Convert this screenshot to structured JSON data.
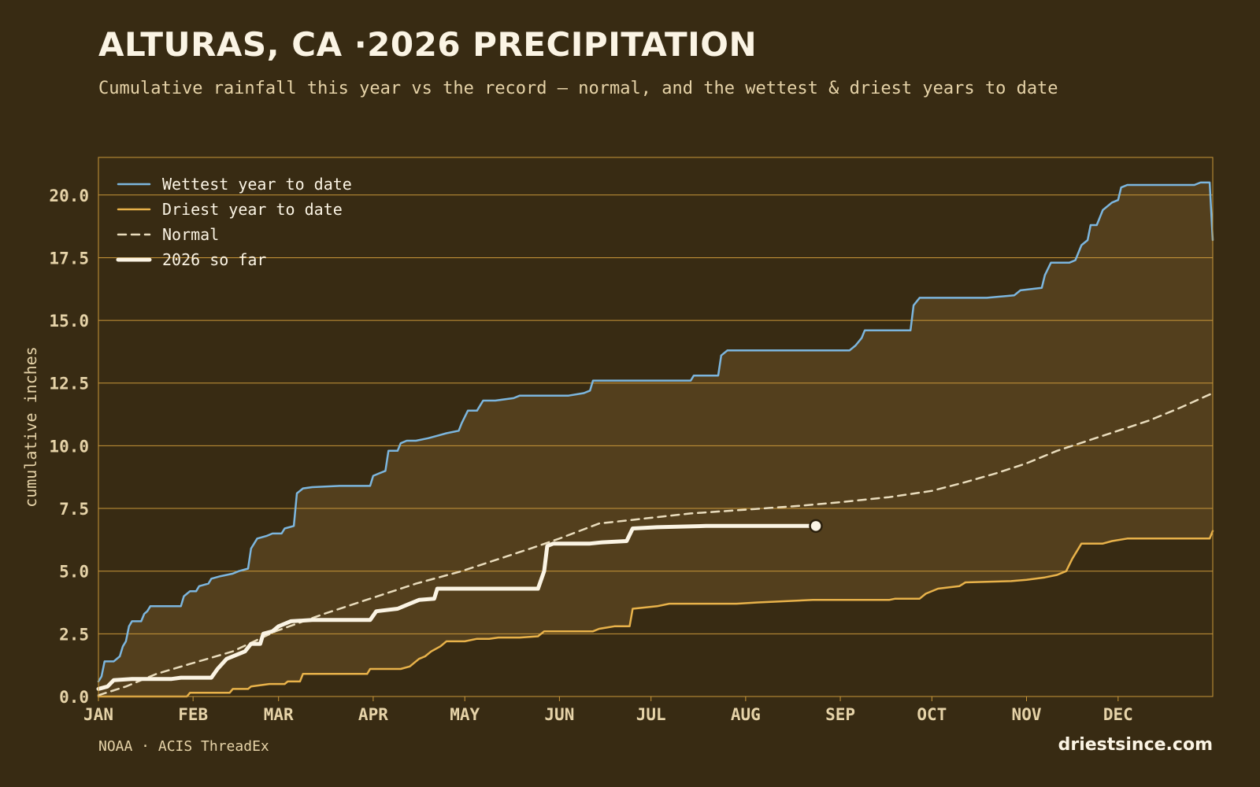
{
  "header": {
    "title": "ALTURAS, CA ·2026 PRECIPITATION",
    "subtitle": "Cumulative rainfall this year vs the record — normal, and the wettest & driest years to date"
  },
  "footer": {
    "source": "NOAA · ACIS ThreadEx",
    "brand": "driestsince.com"
  },
  "colors": {
    "background": "#382b13",
    "band": "#533f1d",
    "gridline": "#c9973a",
    "wettest": "#7cb6de",
    "driest": "#e8b24a",
    "normal": "#e9dcbc",
    "current": "#fbf4e4",
    "tick_text": "#e6d3a8"
  },
  "chart_data": {
    "type": "line",
    "ylabel": "cumulative inches",
    "xlabel": "",
    "ylim": [
      0,
      21.5
    ],
    "xlim_day": [
      1,
      366
    ],
    "yticks": [
      "0.0",
      "2.5",
      "5.0",
      "7.5",
      "10.0",
      "12.5",
      "15.0",
      "17.5",
      "20.0"
    ],
    "month_ticks": [
      {
        "label": "JAN",
        "day": 1
      },
      {
        "label": "FEB",
        "day": 32
      },
      {
        "label": "MAR",
        "day": 60
      },
      {
        "label": "APR",
        "day": 91
      },
      {
        "label": "MAY",
        "day": 121
      },
      {
        "label": "JUN",
        "day": 152
      },
      {
        "label": "JUL",
        "day": 182
      },
      {
        "label": "AUG",
        "day": 213
      },
      {
        "label": "SEP",
        "day": 244
      },
      {
        "label": "OCT",
        "day": 274
      },
      {
        "label": "NOV",
        "day": 305
      },
      {
        "label": "DEC",
        "day": 335
      }
    ],
    "legend_position": "top-left",
    "series": [
      {
        "name": "Wettest year to date",
        "style": "solid",
        "points": [
          [
            1,
            0.6
          ],
          [
            2,
            0.8
          ],
          [
            3,
            1.4
          ],
          [
            6,
            1.4
          ],
          [
            8,
            1.6
          ],
          [
            9,
            2.0
          ],
          [
            10,
            2.2
          ],
          [
            11,
            2.8
          ],
          [
            12,
            3.0
          ],
          [
            15,
            3.0
          ],
          [
            16,
            3.3
          ],
          [
            17,
            3.4
          ],
          [
            18,
            3.6
          ],
          [
            28,
            3.6
          ],
          [
            29,
            4.0
          ],
          [
            31,
            4.2
          ],
          [
            33,
            4.2
          ],
          [
            34,
            4.4
          ],
          [
            37,
            4.5
          ],
          [
            38,
            4.7
          ],
          [
            41,
            4.8
          ],
          [
            45,
            4.9
          ],
          [
            47,
            5.0
          ],
          [
            50,
            5.1
          ],
          [
            51,
            5.9
          ],
          [
            53,
            6.3
          ],
          [
            56,
            6.4
          ],
          [
            58,
            6.5
          ],
          [
            61,
            6.5
          ],
          [
            62,
            6.7
          ],
          [
            65,
            6.8
          ],
          [
            66,
            8.1
          ],
          [
            68,
            8.3
          ],
          [
            71,
            8.35
          ],
          [
            80,
            8.4
          ],
          [
            90,
            8.4
          ],
          [
            91,
            8.8
          ],
          [
            93,
            8.9
          ],
          [
            95,
            9.0
          ],
          [
            96,
            9.8
          ],
          [
            99,
            9.8
          ],
          [
            100,
            10.1
          ],
          [
            102,
            10.2
          ],
          [
            105,
            10.2
          ],
          [
            109,
            10.3
          ],
          [
            112,
            10.4
          ],
          [
            115,
            10.5
          ],
          [
            119,
            10.6
          ],
          [
            120,
            10.9
          ],
          [
            122,
            11.4
          ],
          [
            125,
            11.4
          ],
          [
            127,
            11.8
          ],
          [
            131,
            11.8
          ],
          [
            137,
            11.9
          ],
          [
            139,
            12.0
          ],
          [
            155,
            12.0
          ],
          [
            160,
            12.1
          ],
          [
            162,
            12.2
          ],
          [
            163,
            12.6
          ],
          [
            172,
            12.6
          ],
          [
            195,
            12.6
          ],
          [
            196,
            12.8
          ],
          [
            204,
            12.8
          ],
          [
            205,
            13.6
          ],
          [
            207,
            13.8
          ],
          [
            215,
            13.8
          ],
          [
            247,
            13.8
          ],
          [
            249,
            14.0
          ],
          [
            251,
            14.3
          ],
          [
            252,
            14.6
          ],
          [
            267,
            14.6
          ],
          [
            268,
            15.6
          ],
          [
            270,
            15.9
          ],
          [
            292,
            15.9
          ],
          [
            301,
            16.0
          ],
          [
            303,
            16.2
          ],
          [
            310,
            16.3
          ],
          [
            311,
            16.8
          ],
          [
            313,
            17.3
          ],
          [
            319,
            17.3
          ],
          [
            321,
            17.4
          ],
          [
            323,
            18.0
          ],
          [
            325,
            18.2
          ],
          [
            326,
            18.8
          ],
          [
            328,
            18.8
          ],
          [
            330,
            19.4
          ],
          [
            333,
            19.7
          ],
          [
            335,
            19.8
          ],
          [
            336,
            20.3
          ],
          [
            338,
            20.4
          ],
          [
            345,
            20.4
          ],
          [
            360,
            20.4
          ],
          [
            362,
            20.5
          ],
          [
            365,
            20.5
          ],
          [
            366,
            18.2
          ]
        ]
      },
      {
        "name": "Driest year to date",
        "style": "solid",
        "points": [
          [
            1,
            0.0
          ],
          [
            30,
            0.0
          ],
          [
            31,
            0.15
          ],
          [
            44,
            0.15
          ],
          [
            45,
            0.3
          ],
          [
            50,
            0.3
          ],
          [
            51,
            0.4
          ],
          [
            57,
            0.5
          ],
          [
            62,
            0.5
          ],
          [
            63,
            0.6
          ],
          [
            67,
            0.6
          ],
          [
            68,
            0.9
          ],
          [
            80,
            0.9
          ],
          [
            89,
            0.9
          ],
          [
            90,
            1.1
          ],
          [
            100,
            1.1
          ],
          [
            103,
            1.2
          ],
          [
            106,
            1.5
          ],
          [
            108,
            1.6
          ],
          [
            110,
            1.8
          ],
          [
            113,
            2.0
          ],
          [
            115,
            2.2
          ],
          [
            121,
            2.2
          ],
          [
            125,
            2.3
          ],
          [
            129,
            2.3
          ],
          [
            132,
            2.35
          ],
          [
            139,
            2.35
          ],
          [
            145,
            2.4
          ],
          [
            147,
            2.6
          ],
          [
            163,
            2.6
          ],
          [
            165,
            2.7
          ],
          [
            170,
            2.8
          ],
          [
            175,
            2.8
          ],
          [
            176,
            3.5
          ],
          [
            184,
            3.6
          ],
          [
            188,
            3.7
          ],
          [
            210,
            3.7
          ],
          [
            217,
            3.75
          ],
          [
            235,
            3.85
          ],
          [
            260,
            3.85
          ],
          [
            262,
            3.9
          ],
          [
            270,
            3.9
          ],
          [
            272,
            4.1
          ],
          [
            276,
            4.3
          ],
          [
            283,
            4.4
          ],
          [
            285,
            4.55
          ],
          [
            300,
            4.6
          ],
          [
            305,
            4.65
          ],
          [
            311,
            4.75
          ],
          [
            315,
            4.85
          ],
          [
            318,
            5.0
          ],
          [
            320,
            5.5
          ],
          [
            323,
            6.1
          ],
          [
            330,
            6.1
          ],
          [
            333,
            6.2
          ],
          [
            338,
            6.3
          ],
          [
            345,
            6.3
          ],
          [
            365,
            6.3
          ],
          [
            366,
            6.6
          ]
        ]
      },
      {
        "name": "Normal",
        "style": "dashed",
        "points": [
          [
            1,
            0.05
          ],
          [
            10,
            0.4
          ],
          [
            20,
            0.9
          ],
          [
            31,
            1.3
          ],
          [
            45,
            1.8
          ],
          [
            59,
            2.6
          ],
          [
            75,
            3.3
          ],
          [
            90,
            3.9
          ],
          [
            105,
            4.5
          ],
          [
            120,
            5.0
          ],
          [
            135,
            5.6
          ],
          [
            145,
            6.0
          ],
          [
            152,
            6.3
          ],
          [
            165,
            6.9
          ],
          [
            180,
            7.1
          ],
          [
            195,
            7.3
          ],
          [
            213,
            7.45
          ],
          [
            230,
            7.6
          ],
          [
            244,
            7.75
          ],
          [
            260,
            7.95
          ],
          [
            274,
            8.2
          ],
          [
            285,
            8.55
          ],
          [
            295,
            8.9
          ],
          [
            305,
            9.3
          ],
          [
            315,
            9.8
          ],
          [
            325,
            10.2
          ],
          [
            335,
            10.6
          ],
          [
            345,
            11.0
          ],
          [
            355,
            11.5
          ],
          [
            366,
            12.1
          ]
        ]
      },
      {
        "name": "2026 so far",
        "style": "solid-thick",
        "points": [
          [
            1,
            0.3
          ],
          [
            4,
            0.4
          ],
          [
            6,
            0.65
          ],
          [
            12,
            0.7
          ],
          [
            20,
            0.7
          ],
          [
            25,
            0.7
          ],
          [
            28,
            0.75
          ],
          [
            38,
            0.75
          ],
          [
            40,
            1.1
          ],
          [
            43,
            1.5
          ],
          [
            49,
            1.8
          ],
          [
            51,
            2.1
          ],
          [
            54,
            2.1
          ],
          [
            55,
            2.5
          ],
          [
            58,
            2.6
          ],
          [
            60,
            2.8
          ],
          [
            64,
            3.0
          ],
          [
            71,
            3.05
          ],
          [
            90,
            3.05
          ],
          [
            92,
            3.4
          ],
          [
            99,
            3.5
          ],
          [
            103,
            3.7
          ],
          [
            106,
            3.85
          ],
          [
            111,
            3.9
          ],
          [
            112,
            4.3
          ],
          [
            120,
            4.3
          ],
          [
            145,
            4.3
          ],
          [
            147,
            5.0
          ],
          [
            148,
            6.0
          ],
          [
            150,
            6.1
          ],
          [
            162,
            6.1
          ],
          [
            166,
            6.15
          ],
          [
            174,
            6.2
          ],
          [
            176,
            6.7
          ],
          [
            184,
            6.75
          ],
          [
            200,
            6.8
          ],
          [
            217,
            6.8
          ],
          [
            236,
            6.8
          ]
        ]
      }
    ],
    "current_marker": {
      "day": 236,
      "value": 6.8
    }
  }
}
